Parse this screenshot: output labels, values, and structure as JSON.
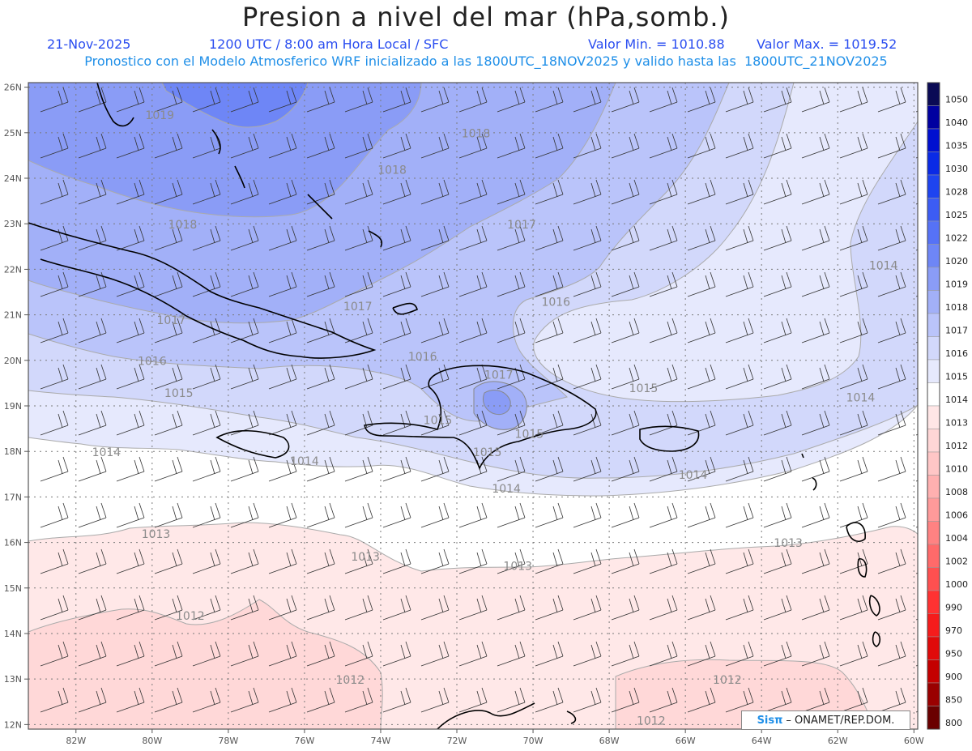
{
  "title": "Presion a nivel del mar (hPa,somb.)",
  "subtitle": {
    "date": "21-Nov-2025",
    "time": "1200 UTC / 8:00 am Hora Local / SFC",
    "valor_min": "Valor Min. = 1010.88",
    "valor_max": "Valor Max. = 1019.52",
    "forecast_info": "Pronostico con el Modelo Atmosferico WRF inicializado a las 1800UTC_18NOV2025 y valido hasta las  1800UTC_21NOV2025"
  },
  "axes": {
    "lon_ticks": [
      "82W",
      "80W",
      "78W",
      "76W",
      "74W",
      "72W",
      "70W",
      "68W",
      "66W",
      "64W",
      "62W",
      "60W"
    ],
    "lat_ticks": [
      "26N",
      "25N",
      "24N",
      "23N",
      "22N",
      "21N",
      "20N",
      "19N",
      "18N",
      "17N",
      "16N",
      "15N",
      "14N",
      "13N",
      "12N"
    ]
  },
  "colorbar": {
    "levels": [
      "1050",
      "1040",
      "1035",
      "1030",
      "1028",
      "1025",
      "1022",
      "1020",
      "1019",
      "1018",
      "1017",
      "1016",
      "1015",
      "1014",
      "1013",
      "1012",
      "1010",
      "1008",
      "1006",
      "1004",
      "1002",
      "1000",
      "990",
      "970",
      "950",
      "900",
      "850",
      "800"
    ],
    "colors": [
      "#0a0a55",
      "#0000a0",
      "#0010d0",
      "#0a2ae6",
      "#1e44f0",
      "#3c5cf4",
      "#5672f6",
      "#6e86f6",
      "#8a9cf6",
      "#a2b0f8",
      "#bac4fa",
      "#d2d8fb",
      "#e6e9fd",
      "#ffffff",
      "#ffe6e6",
      "#ffd6d6",
      "#ffc6c6",
      "#ffb0b0",
      "#ff9a9a",
      "#ff8282",
      "#ff6a6a",
      "#ff5050",
      "#ff3232",
      "#f51c1c",
      "#e00a0a",
      "#c40000",
      "#9a0000",
      "#6a0000"
    ]
  },
  "isobar_labels": [
    {
      "text": "1019",
      "lon": -79.8,
      "lat": 25.3
    },
    {
      "text": "1018",
      "lon": -71.5,
      "lat": 24.9
    },
    {
      "text": "1018",
      "lon": -73.7,
      "lat": 24.1
    },
    {
      "text": "1018",
      "lon": -79.2,
      "lat": 22.9
    },
    {
      "text": "1017",
      "lon": -70.3,
      "lat": 22.9
    },
    {
      "text": "1017",
      "lon": -74.6,
      "lat": 21.1
    },
    {
      "text": "1016",
      "lon": -69.4,
      "lat": 21.2
    },
    {
      "text": "1017",
      "lon": -79.5,
      "lat": 20.8
    },
    {
      "text": "1016",
      "lon": -80.0,
      "lat": 19.9
    },
    {
      "text": "1016",
      "lon": -72.9,
      "lat": 20.0
    },
    {
      "text": "1017",
      "lon": -70.9,
      "lat": 19.6
    },
    {
      "text": "1014",
      "lon": -60.8,
      "lat": 22.0
    },
    {
      "text": "1015",
      "lon": -79.3,
      "lat": 19.2
    },
    {
      "text": "1015",
      "lon": -67.1,
      "lat": 19.3
    },
    {
      "text": "1014",
      "lon": -61.4,
      "lat": 19.1
    },
    {
      "text": "1015",
      "lon": -72.5,
      "lat": 18.6
    },
    {
      "text": "1015",
      "lon": -70.1,
      "lat": 18.3
    },
    {
      "text": "1015",
      "lon": -71.2,
      "lat": 17.9
    },
    {
      "text": "1014",
      "lon": -81.2,
      "lat": 17.9
    },
    {
      "text": "1014",
      "lon": -76.0,
      "lat": 17.7
    },
    {
      "text": "1014",
      "lon": -70.7,
      "lat": 17.1
    },
    {
      "text": "1014",
      "lon": -65.8,
      "lat": 17.4
    },
    {
      "text": "1013",
      "lon": -79.9,
      "lat": 16.1
    },
    {
      "text": "1013",
      "lon": -74.4,
      "lat": 15.6
    },
    {
      "text": "1013",
      "lon": -70.4,
      "lat": 15.4
    },
    {
      "text": "1013",
      "lon": -63.3,
      "lat": 15.9
    },
    {
      "text": "1012",
      "lon": -79.0,
      "lat": 14.3
    },
    {
      "text": "1012",
      "lon": -74.8,
      "lat": 12.9
    },
    {
      "text": "1012",
      "lon": -64.9,
      "lat": 12.9
    },
    {
      "text": "1012",
      "lon": -66.9,
      "lat": 12.0
    }
  ],
  "credit": {
    "sis": "Sisπ",
    "org": "– ONAMET/REP.DOM."
  }
}
